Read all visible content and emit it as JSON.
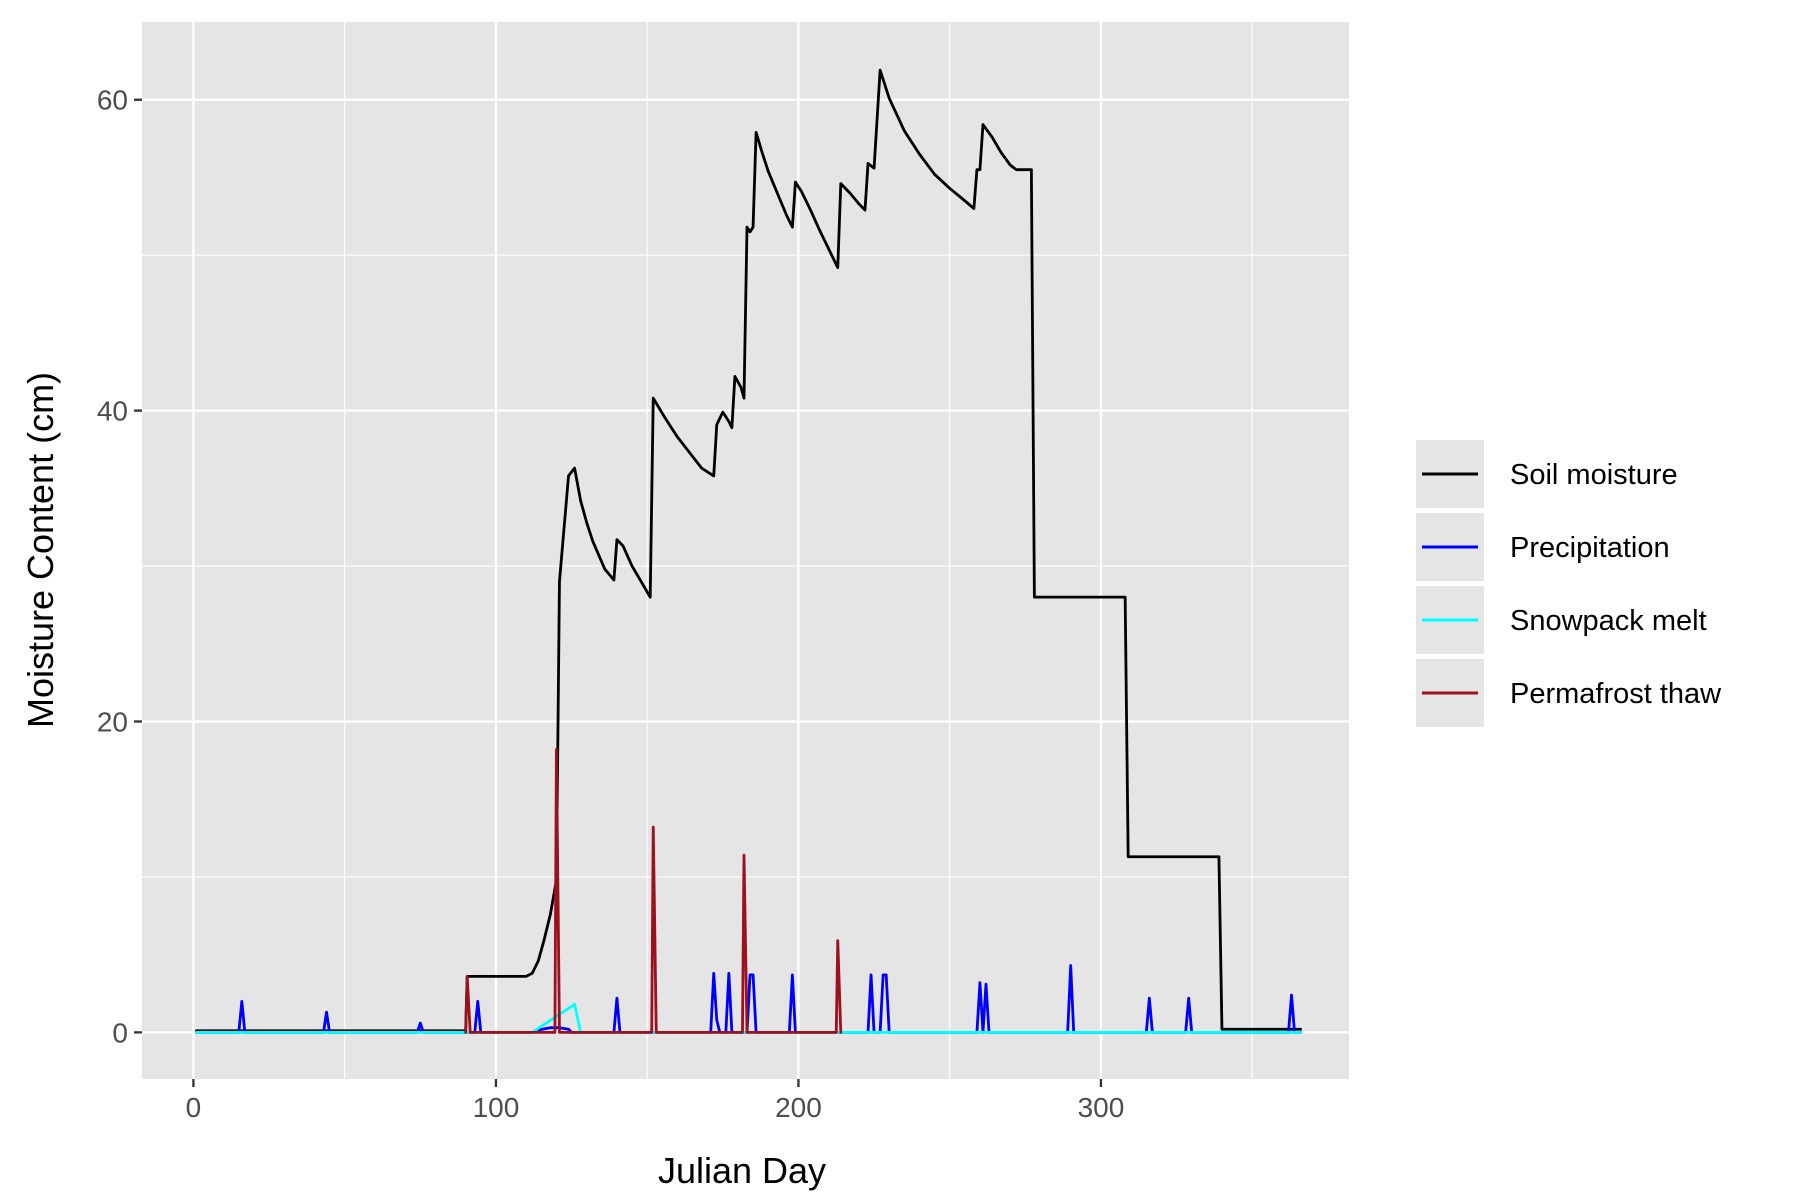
{
  "chart_data": {
    "type": "line",
    "title": "",
    "xlabel": "Julian Day",
    "ylabel": "Moisture Content (cm)",
    "xlim": [
      -17,
      382
    ],
    "ylim": [
      -3,
      65
    ],
    "x_ticks": [
      0,
      100,
      200,
      300
    ],
    "x_tick_labels": [
      "0",
      "100",
      "200",
      "300"
    ],
    "y_ticks": [
      0,
      20,
      40,
      60
    ],
    "y_tick_labels": [
      "0",
      "20",
      "40",
      "60"
    ],
    "grid": true,
    "panel_background": "#e5e5e5",
    "grid_color": "#ffffff",
    "legend_position": "right",
    "series": [
      {
        "name": "Soil moisture",
        "color": "#000000",
        "points": [
          [
            1,
            0.1
          ],
          [
            90,
            0.1
          ],
          [
            90.5,
            3.6
          ],
          [
            110,
            3.6
          ],
          [
            112,
            3.8
          ],
          [
            114,
            4.6
          ],
          [
            116,
            6.0
          ],
          [
            118,
            7.6
          ],
          [
            120,
            9.8
          ],
          [
            121,
            29
          ],
          [
            124,
            35.8
          ],
          [
            126,
            36.3
          ],
          [
            128,
            34.2
          ],
          [
            130,
            32.8
          ],
          [
            132,
            31.6
          ],
          [
            134,
            30.7
          ],
          [
            136,
            29.8
          ],
          [
            139,
            29.1
          ],
          [
            140,
            31.7
          ],
          [
            142,
            31.3
          ],
          [
            145,
            30.0
          ],
          [
            148,
            29.0
          ],
          [
            151,
            28.0
          ],
          [
            152,
            40.8
          ],
          [
            156,
            39.5
          ],
          [
            160,
            38.3
          ],
          [
            164,
            37.3
          ],
          [
            168,
            36.3
          ],
          [
            172,
            35.8
          ],
          [
            173,
            39.1
          ],
          [
            175,
            39.9
          ],
          [
            177,
            39.3
          ],
          [
            178,
            38.9
          ],
          [
            179,
            42.2
          ],
          [
            181,
            41.5
          ],
          [
            182,
            40.8
          ],
          [
            183,
            51.8
          ],
          [
            184,
            51.5
          ],
          [
            185,
            51.8
          ],
          [
            186,
            57.9
          ],
          [
            188,
            56.6
          ],
          [
            190,
            55.4
          ],
          [
            193,
            54.0
          ],
          [
            196,
            52.6
          ],
          [
            198,
            51.8
          ],
          [
            199,
            54.7
          ],
          [
            201,
            54.1
          ],
          [
            204,
            52.9
          ],
          [
            207,
            51.6
          ],
          [
            210,
            50.4
          ],
          [
            213,
            49.2
          ],
          [
            214,
            54.6
          ],
          [
            217,
            54.0
          ],
          [
            220,
            53.3
          ],
          [
            222,
            52.9
          ],
          [
            223,
            55.9
          ],
          [
            225,
            55.6
          ],
          [
            227,
            61.9
          ],
          [
            230,
            60.1
          ],
          [
            235,
            58.0
          ],
          [
            240,
            56.5
          ],
          [
            245,
            55.2
          ],
          [
            250,
            54.3
          ],
          [
            255,
            53.5
          ],
          [
            258,
            53.0
          ],
          [
            259,
            55.5
          ],
          [
            260,
            55.5
          ],
          [
            261,
            58.4
          ],
          [
            264,
            57.6
          ],
          [
            267,
            56.6
          ],
          [
            270,
            55.8
          ],
          [
            272,
            55.5
          ],
          [
            277,
            55.5
          ],
          [
            278,
            28.0
          ],
          [
            308,
            28.0
          ],
          [
            309,
            11.3
          ],
          [
            339,
            11.3
          ],
          [
            340,
            0.2
          ],
          [
            366,
            0.2
          ]
        ]
      },
      {
        "name": "Precipitation",
        "color": "#0000ff",
        "points": [
          [
            1,
            0
          ],
          [
            15,
            0
          ],
          [
            16,
            2.0
          ],
          [
            17,
            0
          ],
          [
            43,
            0
          ],
          [
            44,
            1.3
          ],
          [
            45,
            0
          ],
          [
            74,
            0
          ],
          [
            75,
            0.6
          ],
          [
            76,
            0
          ],
          [
            93,
            0
          ],
          [
            94,
            2.0
          ],
          [
            95,
            0
          ],
          [
            112,
            0
          ],
          [
            114,
            0.15
          ],
          [
            118,
            0.3
          ],
          [
            121,
            0.3
          ],
          [
            124,
            0.2
          ],
          [
            125,
            0
          ],
          [
            139,
            0
          ],
          [
            140,
            2.2
          ],
          [
            141,
            0
          ],
          [
            171,
            0
          ],
          [
            172,
            3.8
          ],
          [
            173,
            0.8
          ],
          [
            174,
            0
          ],
          [
            176,
            0
          ],
          [
            177,
            3.8
          ],
          [
            178,
            0
          ],
          [
            183,
            0
          ],
          [
            184,
            3.7
          ],
          [
            185,
            3.7
          ],
          [
            186,
            0
          ],
          [
            197,
            0
          ],
          [
            198,
            3.7
          ],
          [
            199,
            0
          ],
          [
            223,
            0
          ],
          [
            224,
            3.7
          ],
          [
            225,
            0
          ],
          [
            227,
            0
          ],
          [
            228,
            3.7
          ],
          [
            229,
            3.7
          ],
          [
            230,
            0
          ],
          [
            259,
            0
          ],
          [
            260,
            3.2
          ],
          [
            261,
            0
          ],
          [
            262,
            3.1
          ],
          [
            263,
            0
          ],
          [
            289,
            0
          ],
          [
            290,
            4.3
          ],
          [
            291,
            0
          ],
          [
            315,
            0
          ],
          [
            316,
            2.2
          ],
          [
            317,
            0
          ],
          [
            328,
            0
          ],
          [
            329,
            2.2
          ],
          [
            330,
            0
          ],
          [
            362,
            0
          ],
          [
            363,
            2.4
          ],
          [
            364,
            0
          ],
          [
            366,
            0
          ]
        ]
      },
      {
        "name": "Snowpack melt",
        "color": "#00ffff",
        "points": [
          [
            1,
            0
          ],
          [
            112,
            0
          ],
          [
            126,
            1.8
          ],
          [
            128,
            0
          ],
          [
            366,
            0
          ]
        ]
      },
      {
        "name": "Permafrost thaw",
        "color": "#9b111e",
        "points": [
          [
            90,
            0
          ],
          [
            90.5,
            3.6
          ],
          [
            91.5,
            0
          ],
          [
            119.5,
            0
          ],
          [
            120,
            18.2
          ],
          [
            121,
            0
          ],
          [
            151.5,
            0
          ],
          [
            152,
            13.2
          ],
          [
            153,
            0
          ],
          [
            181.5,
            0
          ],
          [
            182,
            11.4
          ],
          [
            183,
            0
          ],
          [
            212.5,
            0
          ],
          [
            213,
            5.9
          ],
          [
            214,
            0
          ]
        ]
      }
    ]
  }
}
